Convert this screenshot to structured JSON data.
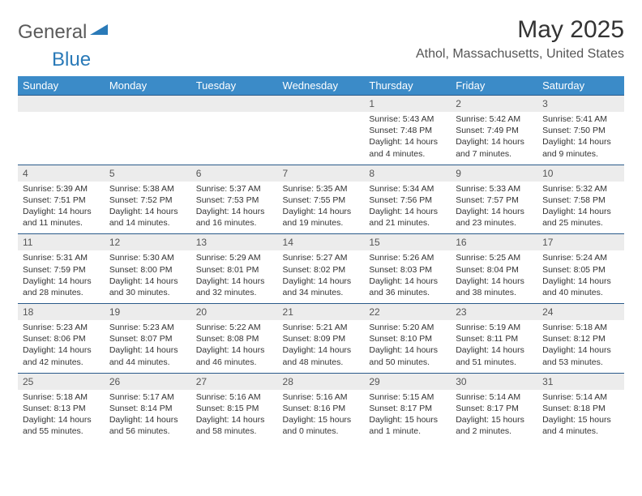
{
  "logo": {
    "gray": "General",
    "blue": "Blue"
  },
  "title": "May 2025",
  "location": "Athol, Massachusetts, United States",
  "colors": {
    "header_bg": "#3b8bc8",
    "header_text": "#ffffff",
    "daynum_bg": "#ececec",
    "row_border": "#2a5a8a",
    "logo_gray": "#5a5a5a",
    "logo_blue": "#2a7ab8"
  },
  "weekdays": [
    "Sunday",
    "Monday",
    "Tuesday",
    "Wednesday",
    "Thursday",
    "Friday",
    "Saturday"
  ],
  "weeks": [
    {
      "nums": [
        "",
        "",
        "",
        "",
        "1",
        "2",
        "3"
      ],
      "cells": [
        null,
        null,
        null,
        null,
        {
          "sr": "Sunrise: 5:43 AM",
          "ss": "Sunset: 7:48 PM",
          "d1": "Daylight: 14 hours",
          "d2": "and 4 minutes."
        },
        {
          "sr": "Sunrise: 5:42 AM",
          "ss": "Sunset: 7:49 PM",
          "d1": "Daylight: 14 hours",
          "d2": "and 7 minutes."
        },
        {
          "sr": "Sunrise: 5:41 AM",
          "ss": "Sunset: 7:50 PM",
          "d1": "Daylight: 14 hours",
          "d2": "and 9 minutes."
        }
      ]
    },
    {
      "nums": [
        "4",
        "5",
        "6",
        "7",
        "8",
        "9",
        "10"
      ],
      "cells": [
        {
          "sr": "Sunrise: 5:39 AM",
          "ss": "Sunset: 7:51 PM",
          "d1": "Daylight: 14 hours",
          "d2": "and 11 minutes."
        },
        {
          "sr": "Sunrise: 5:38 AM",
          "ss": "Sunset: 7:52 PM",
          "d1": "Daylight: 14 hours",
          "d2": "and 14 minutes."
        },
        {
          "sr": "Sunrise: 5:37 AM",
          "ss": "Sunset: 7:53 PM",
          "d1": "Daylight: 14 hours",
          "d2": "and 16 minutes."
        },
        {
          "sr": "Sunrise: 5:35 AM",
          "ss": "Sunset: 7:55 PM",
          "d1": "Daylight: 14 hours",
          "d2": "and 19 minutes."
        },
        {
          "sr": "Sunrise: 5:34 AM",
          "ss": "Sunset: 7:56 PM",
          "d1": "Daylight: 14 hours",
          "d2": "and 21 minutes."
        },
        {
          "sr": "Sunrise: 5:33 AM",
          "ss": "Sunset: 7:57 PM",
          "d1": "Daylight: 14 hours",
          "d2": "and 23 minutes."
        },
        {
          "sr": "Sunrise: 5:32 AM",
          "ss": "Sunset: 7:58 PM",
          "d1": "Daylight: 14 hours",
          "d2": "and 25 minutes."
        }
      ]
    },
    {
      "nums": [
        "11",
        "12",
        "13",
        "14",
        "15",
        "16",
        "17"
      ],
      "cells": [
        {
          "sr": "Sunrise: 5:31 AM",
          "ss": "Sunset: 7:59 PM",
          "d1": "Daylight: 14 hours",
          "d2": "and 28 minutes."
        },
        {
          "sr": "Sunrise: 5:30 AM",
          "ss": "Sunset: 8:00 PM",
          "d1": "Daylight: 14 hours",
          "d2": "and 30 minutes."
        },
        {
          "sr": "Sunrise: 5:29 AM",
          "ss": "Sunset: 8:01 PM",
          "d1": "Daylight: 14 hours",
          "d2": "and 32 minutes."
        },
        {
          "sr": "Sunrise: 5:27 AM",
          "ss": "Sunset: 8:02 PM",
          "d1": "Daylight: 14 hours",
          "d2": "and 34 minutes."
        },
        {
          "sr": "Sunrise: 5:26 AM",
          "ss": "Sunset: 8:03 PM",
          "d1": "Daylight: 14 hours",
          "d2": "and 36 minutes."
        },
        {
          "sr": "Sunrise: 5:25 AM",
          "ss": "Sunset: 8:04 PM",
          "d1": "Daylight: 14 hours",
          "d2": "and 38 minutes."
        },
        {
          "sr": "Sunrise: 5:24 AM",
          "ss": "Sunset: 8:05 PM",
          "d1": "Daylight: 14 hours",
          "d2": "and 40 minutes."
        }
      ]
    },
    {
      "nums": [
        "18",
        "19",
        "20",
        "21",
        "22",
        "23",
        "24"
      ],
      "cells": [
        {
          "sr": "Sunrise: 5:23 AM",
          "ss": "Sunset: 8:06 PM",
          "d1": "Daylight: 14 hours",
          "d2": "and 42 minutes."
        },
        {
          "sr": "Sunrise: 5:23 AM",
          "ss": "Sunset: 8:07 PM",
          "d1": "Daylight: 14 hours",
          "d2": "and 44 minutes."
        },
        {
          "sr": "Sunrise: 5:22 AM",
          "ss": "Sunset: 8:08 PM",
          "d1": "Daylight: 14 hours",
          "d2": "and 46 minutes."
        },
        {
          "sr": "Sunrise: 5:21 AM",
          "ss": "Sunset: 8:09 PM",
          "d1": "Daylight: 14 hours",
          "d2": "and 48 minutes."
        },
        {
          "sr": "Sunrise: 5:20 AM",
          "ss": "Sunset: 8:10 PM",
          "d1": "Daylight: 14 hours",
          "d2": "and 50 minutes."
        },
        {
          "sr": "Sunrise: 5:19 AM",
          "ss": "Sunset: 8:11 PM",
          "d1": "Daylight: 14 hours",
          "d2": "and 51 minutes."
        },
        {
          "sr": "Sunrise: 5:18 AM",
          "ss": "Sunset: 8:12 PM",
          "d1": "Daylight: 14 hours",
          "d2": "and 53 minutes."
        }
      ]
    },
    {
      "nums": [
        "25",
        "26",
        "27",
        "28",
        "29",
        "30",
        "31"
      ],
      "cells": [
        {
          "sr": "Sunrise: 5:18 AM",
          "ss": "Sunset: 8:13 PM",
          "d1": "Daylight: 14 hours",
          "d2": "and 55 minutes."
        },
        {
          "sr": "Sunrise: 5:17 AM",
          "ss": "Sunset: 8:14 PM",
          "d1": "Daylight: 14 hours",
          "d2": "and 56 minutes."
        },
        {
          "sr": "Sunrise: 5:16 AM",
          "ss": "Sunset: 8:15 PM",
          "d1": "Daylight: 14 hours",
          "d2": "and 58 minutes."
        },
        {
          "sr": "Sunrise: 5:16 AM",
          "ss": "Sunset: 8:16 PM",
          "d1": "Daylight: 15 hours",
          "d2": "and 0 minutes."
        },
        {
          "sr": "Sunrise: 5:15 AM",
          "ss": "Sunset: 8:17 PM",
          "d1": "Daylight: 15 hours",
          "d2": "and 1 minute."
        },
        {
          "sr": "Sunrise: 5:14 AM",
          "ss": "Sunset: 8:17 PM",
          "d1": "Daylight: 15 hours",
          "d2": "and 2 minutes."
        },
        {
          "sr": "Sunrise: 5:14 AM",
          "ss": "Sunset: 8:18 PM",
          "d1": "Daylight: 15 hours",
          "d2": "and 4 minutes."
        }
      ]
    }
  ]
}
